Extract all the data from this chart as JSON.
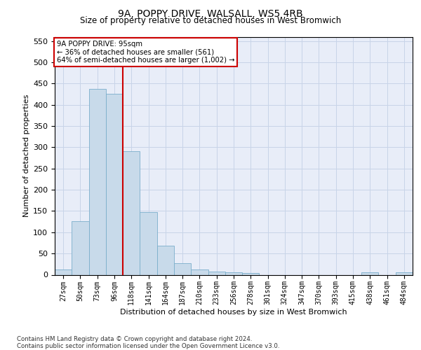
{
  "title": "9A, POPPY DRIVE, WALSALL, WS5 4RB",
  "subtitle": "Size of property relative to detached houses in West Bromwich",
  "xlabel": "Distribution of detached houses by size in West Bromwich",
  "ylabel": "Number of detached properties",
  "footnote1": "Contains HM Land Registry data © Crown copyright and database right 2024.",
  "footnote2": "Contains public sector information licensed under the Open Government Licence v3.0.",
  "annotation_title": "9A POPPY DRIVE: 95sqm",
  "annotation_line1": "← 36% of detached houses are smaller (561)",
  "annotation_line2": "64% of semi-detached houses are larger (1,002) →",
  "bar_color": "#c8daea",
  "bar_edge_color": "#7aaecb",
  "vline_color": "#cc0000",
  "vline_x": 3.5,
  "categories": [
    "27sqm",
    "50sqm",
    "73sqm",
    "96sqm",
    "118sqm",
    "141sqm",
    "164sqm",
    "187sqm",
    "210sqm",
    "233sqm",
    "256sqm",
    "278sqm",
    "301sqm",
    "324sqm",
    "347sqm",
    "370sqm",
    "393sqm",
    "415sqm",
    "438sqm",
    "461sqm",
    "484sqm"
  ],
  "values": [
    12,
    126,
    438,
    425,
    291,
    147,
    68,
    27,
    12,
    8,
    5,
    4,
    0,
    0,
    0,
    0,
    0,
    0,
    5,
    0,
    5
  ],
  "ylim_max": 560,
  "yticks": [
    0,
    50,
    100,
    150,
    200,
    250,
    300,
    350,
    400,
    450,
    500,
    550
  ],
  "grid_color": "#c8d4e8",
  "bg_color": "#e8edf8",
  "title_fontsize": 10,
  "subtitle_fontsize": 8.5,
  "ylabel_fontsize": 8,
  "xlabel_fontsize": 8,
  "ytick_fontsize": 8,
  "xtick_fontsize": 7
}
